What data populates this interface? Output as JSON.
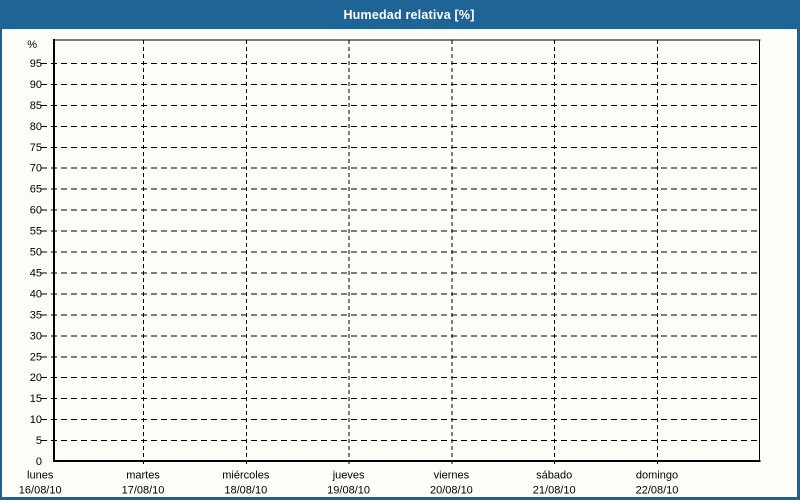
{
  "title": "Humedad relativa [%]",
  "colors": {
    "header_bg": "#1E6496",
    "frame_border": "#1D6295",
    "page_bg": "#FCFEF8",
    "grid": "#000000",
    "label_text": "#000000",
    "title_text": "#FFFFFF"
  },
  "chart_data": {
    "type": "line",
    "title": "Humedad relativa [%]",
    "y_unit_label": "%",
    "ylim": [
      0,
      100
    ],
    "y_tick_step": 5,
    "y_ticks": [
      0,
      5,
      10,
      15,
      20,
      25,
      30,
      35,
      40,
      45,
      50,
      55,
      60,
      65,
      70,
      75,
      80,
      85,
      90,
      95
    ],
    "x_categories": [
      {
        "day": "lunes",
        "date": "16/08/10"
      },
      {
        "day": "martes",
        "date": "17/08/10"
      },
      {
        "day": "miércoles",
        "date": "18/08/10"
      },
      {
        "day": "jueves",
        "date": "19/08/10"
      },
      {
        "day": "viernes",
        "date": "20/08/10"
      },
      {
        "day": "sábado",
        "date": "21/08/10"
      },
      {
        "day": "domingo",
        "date": "22/08/10"
      }
    ],
    "series": [],
    "grid": "dashed",
    "legend": "none"
  }
}
